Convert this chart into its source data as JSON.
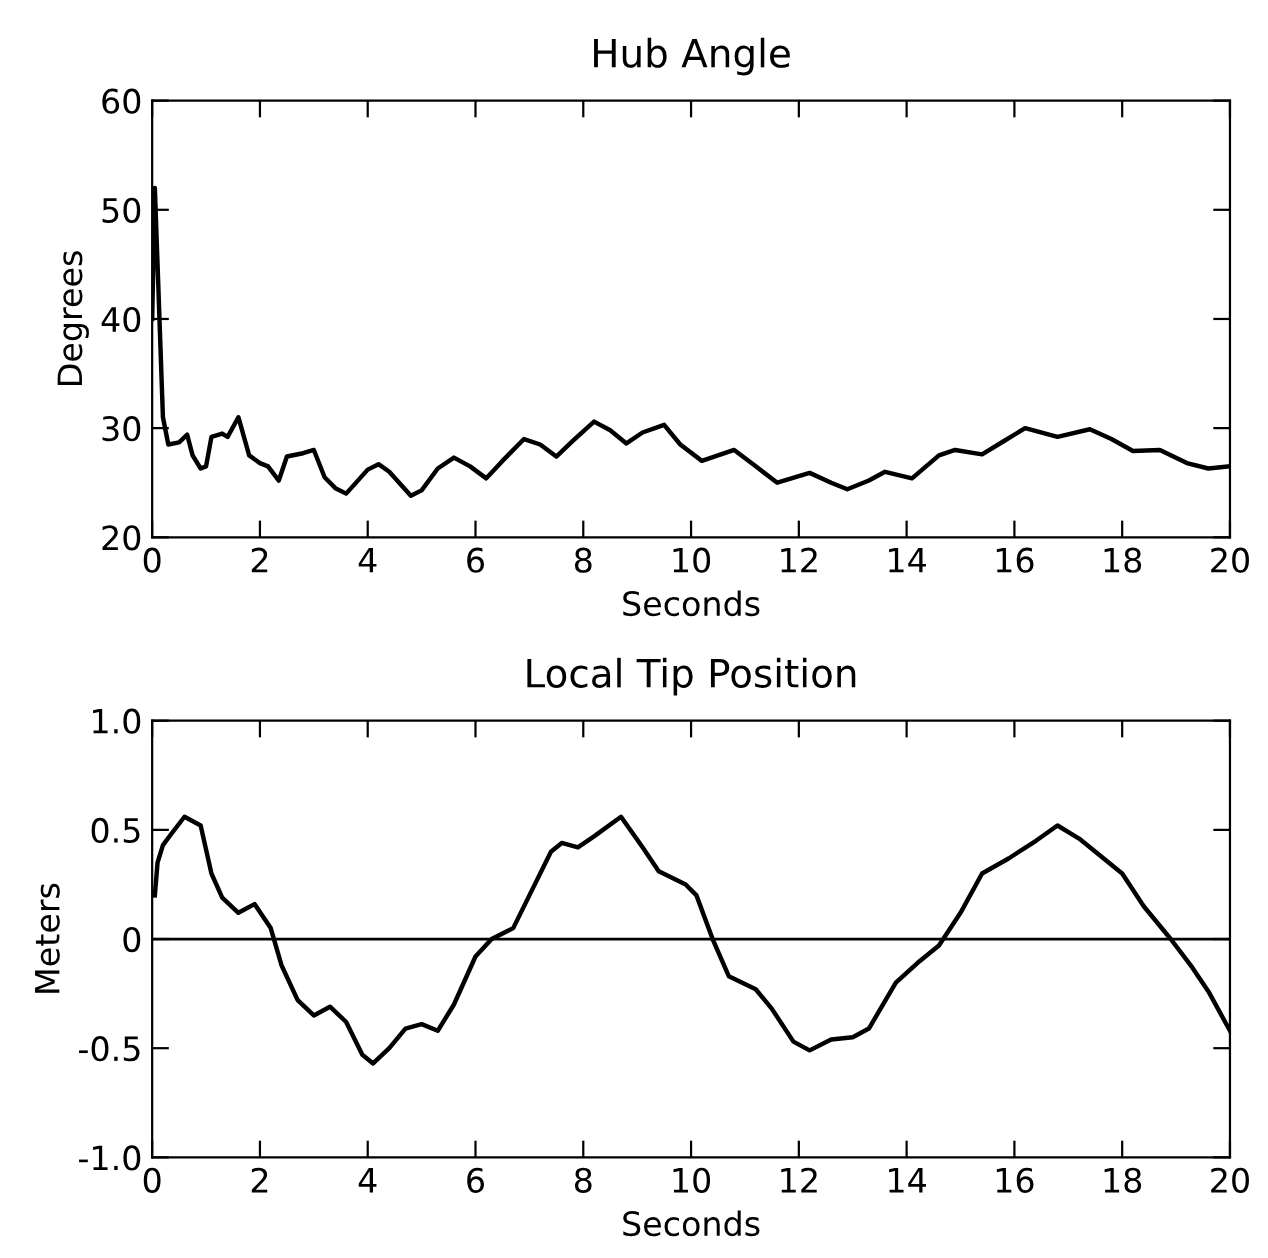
{
  "chart_data": [
    {
      "type": "line",
      "title": "Hub Angle",
      "xlabel": "Seconds",
      "ylabel": "Degrees",
      "xlim": [
        0,
        20
      ],
      "ylim": [
        20,
        60
      ],
      "xticks": [
        0,
        2,
        4,
        6,
        8,
        10,
        12,
        14,
        16,
        18,
        20
      ],
      "yticks": [
        20,
        30,
        40,
        50,
        60
      ],
      "grid": false,
      "legend": false,
      "series": [
        {
          "color": "#000000",
          "x": [
            0,
            0.05,
            0.1,
            0.2,
            0.3,
            0.5,
            0.65,
            0.75,
            0.9,
            1.0,
            1.1,
            1.3,
            1.4,
            1.6,
            1.8,
            2.0,
            2.15,
            2.35,
            2.5,
            2.8,
            3.0,
            3.2,
            3.4,
            3.6,
            4.0,
            4.2,
            4.4,
            4.8,
            5.0,
            5.3,
            5.6,
            5.9,
            6.2,
            6.5,
            6.9,
            7.2,
            7.5,
            7.8,
            8.2,
            8.5,
            8.8,
            9.1,
            9.5,
            9.8,
            10.2,
            10.8,
            11.2,
            11.6,
            12.2,
            12.6,
            12.9,
            13.3,
            13.6,
            14.1,
            14.6,
            14.9,
            15.4,
            15.8,
            16.2,
            16.8,
            17.4,
            17.8,
            18.2,
            18.7,
            19.2,
            19.6,
            20.0
          ],
          "values": [
            40,
            52,
            45,
            31,
            28.5,
            28.7,
            29.4,
            27.5,
            26.3,
            26.5,
            29.2,
            29.5,
            29.2,
            31.0,
            27.5,
            26.8,
            26.5,
            25.2,
            27.4,
            27.7,
            28.0,
            25.5,
            24.5,
            24.0,
            26.2,
            26.7,
            26.0,
            23.8,
            24.3,
            26.3,
            27.3,
            26.5,
            25.4,
            27.0,
            29.0,
            28.5,
            27.4,
            28.8,
            30.6,
            29.8,
            28.6,
            29.6,
            30.3,
            28.5,
            27.0,
            28.0,
            26.5,
            25.0,
            25.9,
            25.0,
            24.4,
            25.2,
            26.0,
            25.4,
            27.5,
            28.0,
            27.6,
            28.8,
            30.0,
            29.2,
            29.9,
            29.0,
            27.9,
            28.0,
            26.8,
            26.3,
            26.5
          ]
        }
      ]
    },
    {
      "type": "line",
      "title": "Local Tip Position",
      "xlabel": "Seconds",
      "ylabel": "Meters",
      "xlim": [
        0,
        20
      ],
      "ylim": [
        -1,
        1
      ],
      "xticks": [
        0,
        2,
        4,
        6,
        8,
        10,
        12,
        14,
        16,
        18,
        20
      ],
      "yticks": [
        {
          "value": -1,
          "label": "-1.0"
        },
        {
          "value": -0.5,
          "label": "-0.5"
        },
        0,
        {
          "value": 0.5,
          "label": "0.5"
        },
        {
          "value": 1,
          "label": "1.0"
        }
      ],
      "grid": false,
      "legend": false,
      "ref_lines": [
        {
          "axis": "y",
          "value": 0,
          "color": "#000000"
        }
      ],
      "series": [
        {
          "color": "#000000",
          "x": [
            0.05,
            0.1,
            0.2,
            0.35,
            0.6,
            0.9,
            1.1,
            1.3,
            1.6,
            1.9,
            2.2,
            2.4,
            2.7,
            3.0,
            3.3,
            3.6,
            3.9,
            4.1,
            4.4,
            4.7,
            5.0,
            5.3,
            5.6,
            6.0,
            6.3,
            6.7,
            7.0,
            7.4,
            7.6,
            7.9,
            8.2,
            8.7,
            9.1,
            9.4,
            9.9,
            10.1,
            10.4,
            10.7,
            11.2,
            11.5,
            11.9,
            12.2,
            12.6,
            13.0,
            13.3,
            13.8,
            14.2,
            14.6,
            15.0,
            15.4,
            15.9,
            16.4,
            16.8,
            17.2,
            17.6,
            18.0,
            18.4,
            18.9,
            19.3,
            19.6,
            20.0
          ],
          "values": [
            0.2,
            0.35,
            0.43,
            0.48,
            0.56,
            0.52,
            0.3,
            0.19,
            0.12,
            0.16,
            0.05,
            -0.12,
            -0.28,
            -0.35,
            -0.31,
            -0.38,
            -0.53,
            -0.57,
            -0.5,
            -0.41,
            -0.39,
            -0.42,
            -0.3,
            -0.08,
            0.0,
            0.05,
            0.2,
            0.4,
            0.44,
            0.42,
            0.47,
            0.56,
            0.42,
            0.31,
            0.25,
            0.2,
            0.0,
            -0.17,
            -0.23,
            -0.32,
            -0.47,
            -0.51,
            -0.46,
            -0.45,
            -0.41,
            -0.2,
            -0.11,
            -0.03,
            0.12,
            0.3,
            0.37,
            0.45,
            0.52,
            0.46,
            0.38,
            0.3,
            0.15,
            0.0,
            -0.13,
            -0.24,
            -0.42
          ]
        }
      ]
    }
  ]
}
